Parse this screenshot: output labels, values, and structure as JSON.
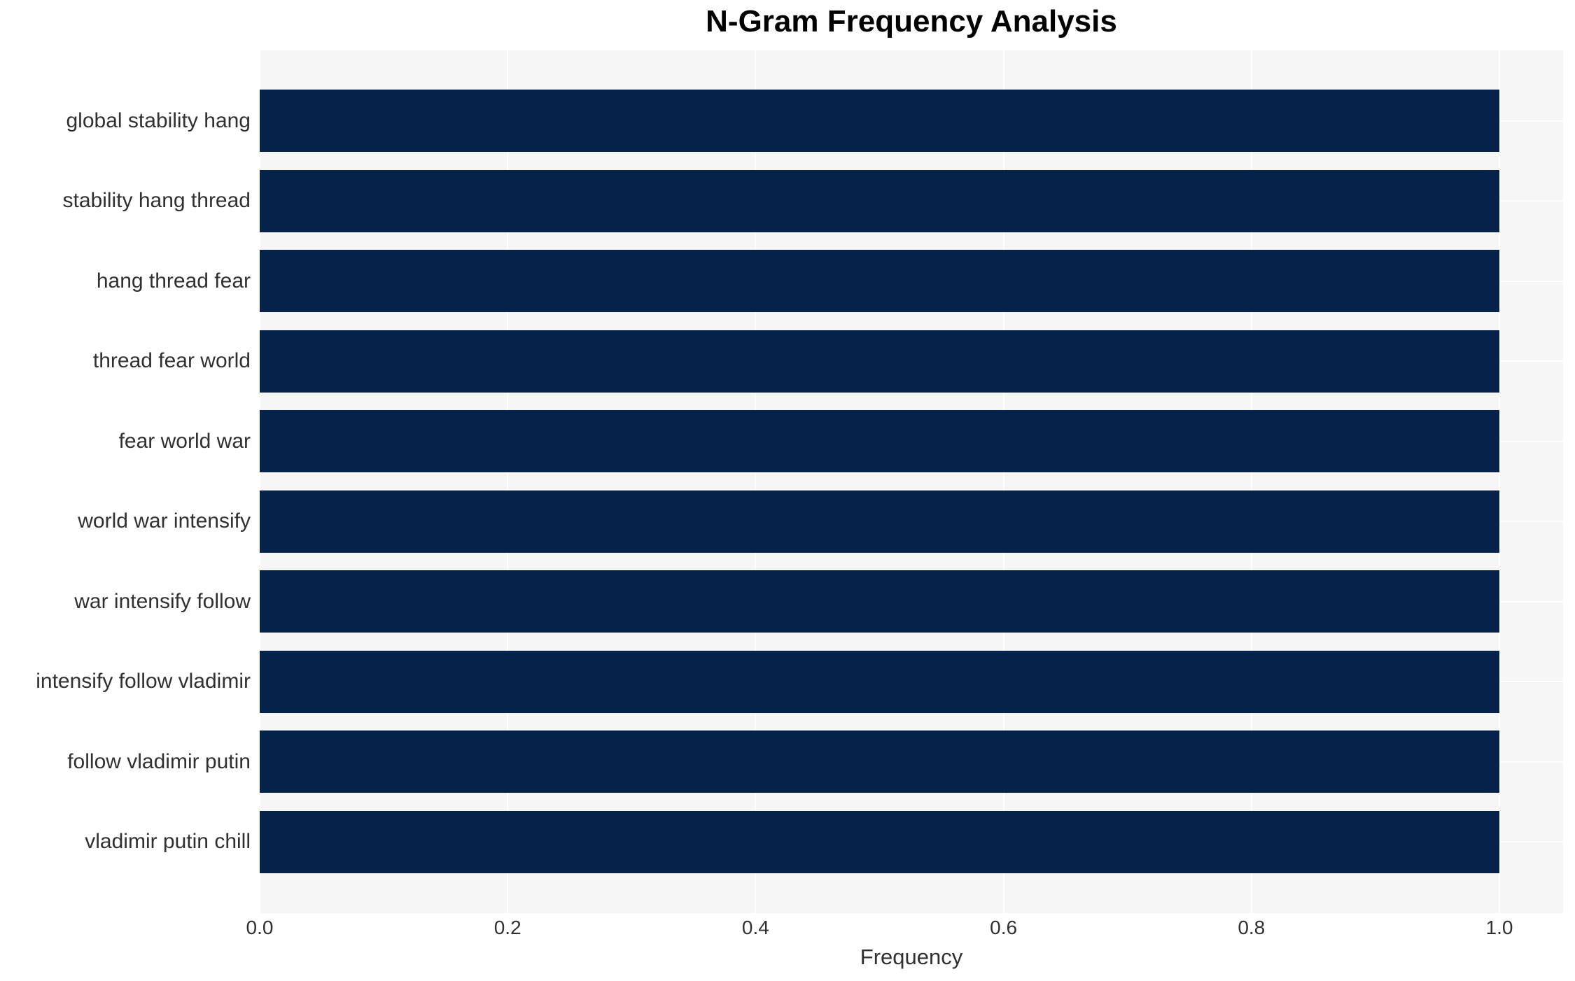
{
  "chart_data": {
    "type": "bar",
    "orientation": "horizontal",
    "title": "N-Gram Frequency Analysis",
    "xlabel": "Frequency",
    "ylabel": "",
    "categories": [
      "global stability hang",
      "stability hang thread",
      "hang thread fear",
      "thread fear world",
      "fear world war",
      "world war intensify",
      "war intensify follow",
      "intensify follow vladimir",
      "follow vladimir putin",
      "vladimir putin chill"
    ],
    "values": [
      1.0,
      1.0,
      1.0,
      1.0,
      1.0,
      1.0,
      1.0,
      1.0,
      1.0,
      1.0
    ],
    "xticks": [
      0.0,
      0.2,
      0.4,
      0.6,
      0.8,
      1.0
    ],
    "xtick_labels": [
      "0.0",
      "0.2",
      "0.4",
      "0.6",
      "0.8",
      "1.0"
    ],
    "xlim": [
      0,
      1.051
    ],
    "grid": "white major gridlines on gray panel",
    "legend": null,
    "colors": {
      "bar": "#05234a",
      "panel_background": "#f6f6f7",
      "gridline": "#ffffff",
      "tick_text": "#303030",
      "title_text": "#000000",
      "figure_background": "#ffffff"
    }
  }
}
